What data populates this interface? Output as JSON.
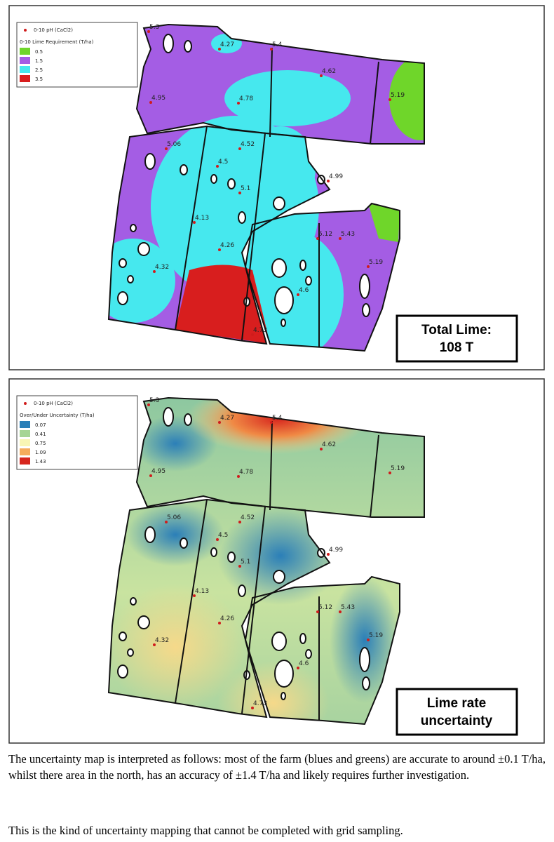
{
  "maps": [
    {
      "legend": {
        "point_label": "0-10 pH (CaCl2)",
        "title": "0-10 Lime Requirement (T/ha)",
        "items": [
          {
            "label": "0.5",
            "color": "#6fd62a"
          },
          {
            "label": "1.5",
            "color": "#a45de4"
          },
          {
            "label": "2.5",
            "color": "#46e8ee"
          },
          {
            "label": "3.5",
            "color": "#d81e1e"
          }
        ]
      },
      "points": [
        "5.3",
        "4.27",
        "5.4",
        "4.62",
        "5.19",
        "4.95",
        "4.78",
        "5.06",
        "4.52",
        "4.5",
        "5.1",
        "4.99",
        "4.13",
        "4.26",
        "5.12",
        "5.43",
        "4.32",
        "5.19",
        "4.6",
        "4.73"
      ],
      "callout": [
        "Total Lime:",
        "108 T"
      ]
    },
    {
      "legend": {
        "point_label": "0-10 pH (CaCl2)",
        "title": "Over/Under Uncertainty (T/ha)",
        "items": [
          {
            "label": "0.07",
            "color": "#2b7fb8"
          },
          {
            "label": "0.41",
            "color": "#a6d596"
          },
          {
            "label": "0.75",
            "color": "#f8f6b4"
          },
          {
            "label": "1.09",
            "color": "#f5ac5c"
          },
          {
            "label": "1.43",
            "color": "#d7261e"
          }
        ]
      },
      "points": [
        "5.3",
        "4.27",
        "5.4",
        "4.62",
        "5.19",
        "4.95",
        "4.78",
        "5.06",
        "4.52",
        "4.5",
        "5.1",
        "4.99",
        "4.13",
        "4.26",
        "5.12",
        "5.43",
        "4.32",
        "5.19",
        "4.6",
        "4.73"
      ],
      "callout": [
        "Lime rate",
        "uncertainty"
      ]
    }
  ],
  "paragraphs": [
    "The uncertainty map is interpreted as follows: most of the farm (blues and greens) are accurate to around ±0.1 T/ha, whilst there area in the north, has an accuracy of ±1.4 T/ha and likely requires further investigation.",
    "This is the kind of uncertainty mapping that cannot be completed with grid sampling."
  ]
}
